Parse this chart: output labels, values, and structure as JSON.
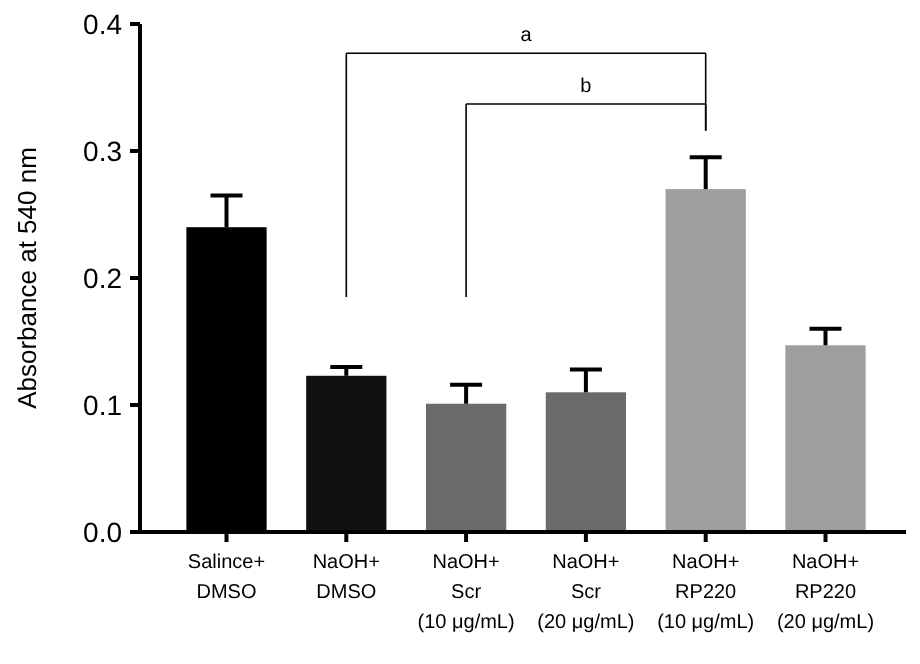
{
  "chart_data": {
    "type": "bar",
    "ylabel": "Absorbance at 540 nm",
    "categories": [
      "Salince+\nDMSO",
      "NaOH+\nDMSO",
      "NaOH+\nScr\n(10 μg/mL)",
      "NaOH+\nScr\n(20 μg/mL)",
      "NaOH+\nRP220\n(10 μg/mL)",
      "NaOH+\nRP220\n(20 μg/mL)"
    ],
    "values": [
      0.24,
      0.123,
      0.101,
      0.11,
      0.27,
      0.147
    ],
    "errors": [
      0.025,
      0.007,
      0.015,
      0.018,
      0.025,
      0.013
    ],
    "colors": [
      "#000000",
      "#111111",
      "#6b6b6b",
      "#6b6b6b",
      "#9e9e9e",
      "#9e9e9e"
    ],
    "ylim": [
      0,
      0.4
    ],
    "yticks": [
      {
        "value": 0,
        "label": "0.0"
      },
      {
        "value": 0.1,
        "label": "0.1"
      },
      {
        "value": 0.2,
        "label": "0.2"
      },
      {
        "value": 0.3,
        "label": "0.3"
      },
      {
        "value": 0.4,
        "label": "0.4"
      }
    ],
    "annotations": [
      "a",
      "b"
    ]
  }
}
